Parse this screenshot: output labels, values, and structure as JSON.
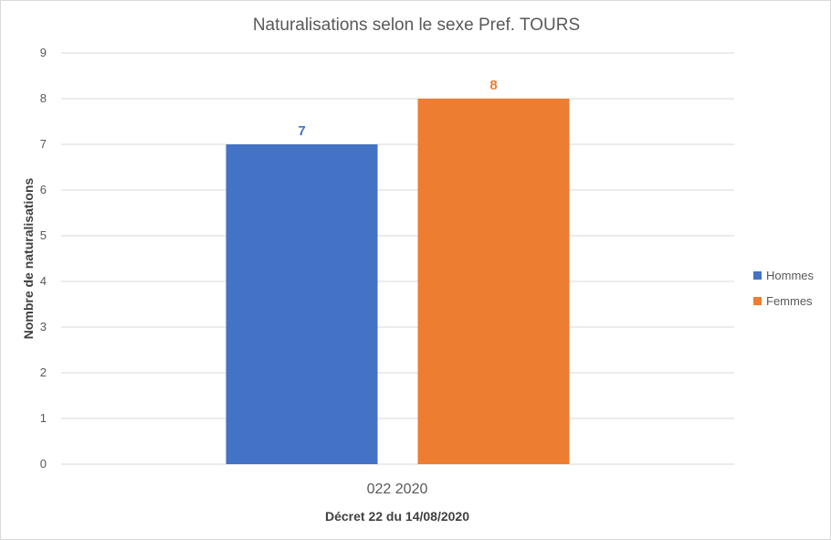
{
  "chart_data": {
    "type": "bar",
    "title": "Naturalisations selon le sexe Pref. TOURS",
    "categories": [
      "022 2020"
    ],
    "xlabel": "Décret 22 du 14/08/2020",
    "ylabel": "Nombre de naturalisations",
    "ylim": [
      0,
      9
    ],
    "yticks": [
      "0",
      "1",
      "2",
      "3",
      "4",
      "5",
      "6",
      "7",
      "8",
      "9"
    ],
    "grid": true,
    "legend_position": "right",
    "series": [
      {
        "name": "Hommes",
        "values": [
          7
        ],
        "color": "#4472C4"
      },
      {
        "name": "Femmes",
        "values": [
          8
        ],
        "color": "#ED7D31"
      }
    ]
  }
}
